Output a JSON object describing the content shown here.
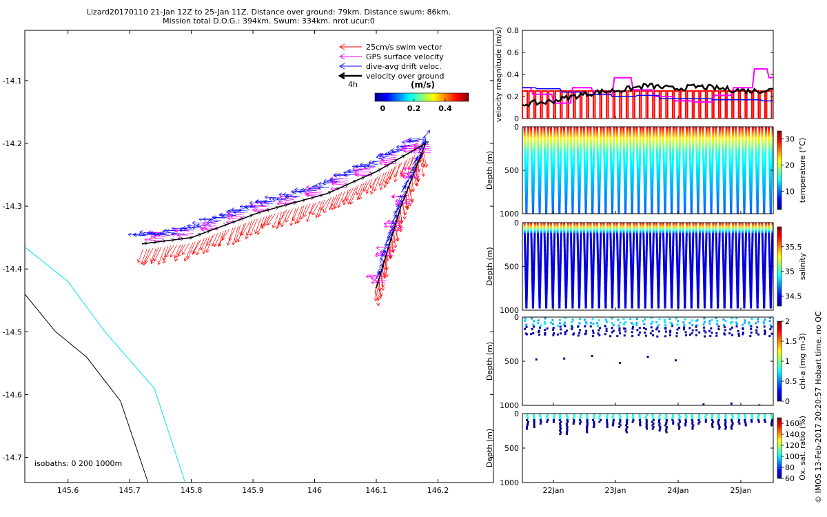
{
  "header": {
    "line1": "Lizard20170110 21-Jan 12Z to 25-Jan 11Z. Distance over ground: 79km. Distance swum: 86km.",
    "line2": "Mission total D.O.G.: 394km. Swum: 334km. nrot ucur:0"
  },
  "side_note": "© IMOS 13-Feb-2017 20:20:57 Hobart time. no QC",
  "colors": {
    "swim": "#ff0000",
    "gps": "#ff00ff",
    "drift": "#0000ff",
    "ground": "#000000",
    "isobath0": "#00e5ee",
    "isobath200": "#000000"
  },
  "chart_data": [
    {
      "id": "map",
      "type": "scatter",
      "title": "",
      "xlabel": "",
      "ylabel": "",
      "xlim": [
        145.53,
        146.29
      ],
      "ylim": [
        -14.74,
        -14.02
      ],
      "x_ticks": [
        145.6,
        145.7,
        145.8,
        145.9,
        146,
        146.1,
        146.2
      ],
      "x_tick_labels": [
        "145.6",
        "145.7",
        "145.8",
        "145.9",
        "146",
        "146.1",
        "146.2"
      ],
      "y_ticks": [
        -14.1,
        -14.2,
        -14.3,
        -14.4,
        -14.5,
        -14.6,
        -14.7
      ],
      "y_tick_labels": [
        "-14.1",
        "-14.2",
        "-14.3",
        "-14.4",
        "-14.5",
        "-14.6",
        "-14.7"
      ],
      "legend": [
        {
          "key": "swim",
          "label": "25cm/s swim vector"
        },
        {
          "key": "gps",
          "label": "GPS surface velocity"
        },
        {
          "key": "drift",
          "label": "dive-avg drift veloc."
        },
        {
          "key": "ground",
          "label": "velocity over ground"
        }
      ],
      "time_label": "4h",
      "colorbar": {
        "title": "(m/s)",
        "ticks": [
          0,
          0.2,
          0.4
        ],
        "tick_labels": [
          "0",
          "0.2",
          "0.4"
        ],
        "range": [
          -0.05,
          0.55
        ]
      },
      "isobath_label": "isobaths: 0   200  1000m",
      "track": {
        "lon": [
          145.72,
          145.8,
          145.91,
          146.02,
          146.1,
          146.18,
          146.14,
          146.1
        ],
        "lat": [
          -14.36,
          -14.35,
          -14.31,
          -14.28,
          -14.245,
          -14.2,
          -14.3,
          -14.43
        ]
      },
      "isobath_0": {
        "lon": [
          145.53,
          145.6,
          145.66,
          145.74,
          145.79
        ],
        "lat": [
          -14.365,
          -14.42,
          -14.5,
          -14.59,
          -14.74
        ]
      },
      "isobath_200": {
        "lon": [
          145.53,
          145.58,
          145.63,
          145.685,
          145.73
        ],
        "lat": [
          -14.44,
          -14.5,
          -14.54,
          -14.61,
          -14.74
        ]
      }
    },
    {
      "id": "velocity",
      "type": "line",
      "ylabel": "velocity magnitude (m/s)",
      "ylim": [
        0,
        0.8
      ],
      "y_ticks": [
        0,
        0.2,
        0.4,
        0.6,
        0.8
      ],
      "y_tick_labels": [
        "0",
        "0.2",
        "0.4",
        "0.6",
        "0.8"
      ],
      "series": [
        {
          "name": "swim",
          "color": "#ff0000",
          "value": 0.25
        },
        {
          "name": "GPS surface",
          "color": "#ff00ff",
          "x": [
            0,
            0.08,
            0.16,
            0.24,
            0.32,
            0.4,
            0.48,
            0.56,
            0.64,
            0.72,
            0.8,
            0.88,
            0.96,
            1.0
          ],
          "values": [
            0.28,
            0.22,
            0.14,
            0.28,
            0.22,
            0.37,
            0.26,
            0.2,
            0.16,
            0.15,
            0.21,
            0.28,
            0.45,
            0.37
          ]
        },
        {
          "name": "drift",
          "color": "#0000ff",
          "x": [
            0,
            0.1,
            0.2,
            0.3,
            0.4,
            0.5,
            0.6,
            0.7,
            0.8,
            0.9,
            1.0
          ],
          "values": [
            0.28,
            0.27,
            0.24,
            0.22,
            0.2,
            0.21,
            0.18,
            0.18,
            0.17,
            0.17,
            0.16
          ]
        },
        {
          "name": "ground",
          "color": "#000000",
          "x": [
            0,
            0.1,
            0.2,
            0.3,
            0.4,
            0.5,
            0.6,
            0.7,
            0.8,
            0.9,
            1.0
          ],
          "values": [
            0.13,
            0.15,
            0.2,
            0.24,
            0.26,
            0.3,
            0.27,
            0.29,
            0.27,
            0.25,
            0.26
          ]
        }
      ]
    },
    {
      "id": "temperature",
      "type": "scatter",
      "ylabel": "Depth (m)",
      "ylim": [
        0,
        1000
      ],
      "y_ticks": [
        0,
        500,
        1000
      ],
      "y_tick_labels": [
        "0",
        "500",
        "1000"
      ],
      "dive_count": 38,
      "max_depth": 990,
      "colorbar": {
        "label": "temperature (°C)",
        "ticks": [
          10,
          20,
          30
        ],
        "tick_labels": [
          "10",
          "20",
          "30"
        ],
        "range": [
          3,
          33
        ]
      }
    },
    {
      "id": "salinity",
      "type": "scatter",
      "ylabel": "Depth (m)",
      "ylim": [
        0,
        1000
      ],
      "y_ticks": [
        0,
        500,
        1000
      ],
      "y_tick_labels": [
        "0",
        "500",
        "1000"
      ],
      "dive_count": 38,
      "max_depth": 980,
      "colorbar": {
        "label": "salinity",
        "ticks": [
          34.5,
          35,
          35.5
        ],
        "tick_labels": [
          "34.5",
          "35",
          "35.5"
        ],
        "range": [
          34.3,
          35.9
        ]
      }
    },
    {
      "id": "chla",
      "type": "scatter",
      "ylabel": "Depth (m)",
      "ylim": [
        0,
        1000
      ],
      "y_ticks": [
        0,
        500,
        1000
      ],
      "y_tick_labels": [
        "0",
        "500",
        "1000"
      ],
      "outliers_depth": [
        480,
        470,
        440,
        520,
        450,
        490,
        990,
        980,
        1000
      ],
      "colorbar": {
        "label": "chl-a (mg m-3)",
        "ticks": [
          0,
          0.5,
          1,
          1.5,
          2
        ],
        "tick_labels": [
          "0",
          "0.5",
          "1",
          "1.5",
          "2"
        ],
        "range": [
          0,
          2
        ]
      }
    },
    {
      "id": "oxygen",
      "type": "scatter",
      "ylabel": "Depth (m)",
      "ylim": [
        0,
        1000
      ],
      "y_ticks": [
        0,
        500,
        1000
      ],
      "y_tick_labels": [
        "0",
        "500",
        "1000"
      ],
      "x_ticks_label": [
        "22Jan",
        "23Jan",
        "24Jan",
        "25Jan"
      ],
      "colorbar": {
        "label": "Ox. sat. ratio (%)",
        "ticks": [
          60,
          80,
          100,
          120,
          140,
          160
        ],
        "tick_labels": [
          "60",
          "80",
          "100",
          "120",
          "140",
          "160"
        ],
        "range": [
          60,
          170
        ]
      }
    }
  ]
}
